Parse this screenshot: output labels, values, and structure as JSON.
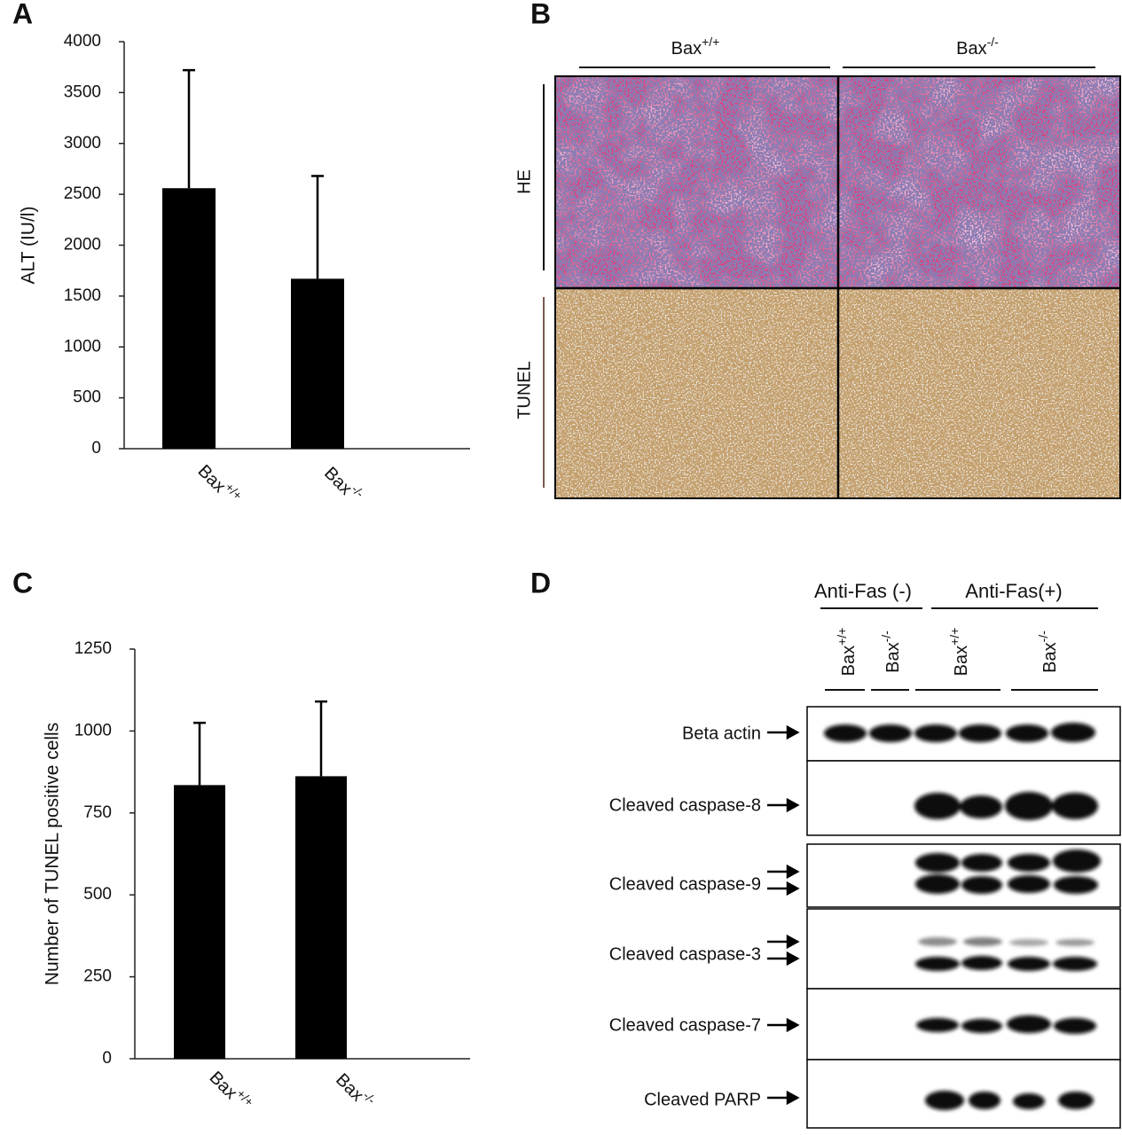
{
  "panels": {
    "a": "A",
    "b": "B",
    "c": "C",
    "d": "D"
  },
  "chart_data": [
    {
      "type": "bar",
      "y_label": "ALT (IU/l)",
      "categories": [
        "Bax+/+",
        "Bax-/-"
      ],
      "values": [
        2560,
        1670
      ],
      "errors": [
        1160,
        1010
      ],
      "color": "#000000",
      "ylim": [
        0,
        4000
      ],
      "yticks": [
        0,
        500,
        1000,
        1500,
        2000,
        2500,
        3000,
        3500,
        4000
      ]
    },
    {
      "type": "bar",
      "y_label": "Number of TUNEL positive cells",
      "categories": [
        "Bax+/+",
        "Bax-/-"
      ],
      "values": [
        835,
        862
      ],
      "errors": [
        190,
        228
      ],
      "color": "#000000",
      "ylim": [
        0,
        1250
      ],
      "yticks": [
        0,
        250,
        500,
        750,
        1000,
        1250
      ]
    }
  ],
  "histology": {
    "columns": [
      "Bax+/+",
      "Bax-/-"
    ],
    "rows": [
      "HE",
      "TUNEL"
    ]
  },
  "western_blot": {
    "treatments": [
      "Anti-Fas (-)",
      "Anti-Fas(+)"
    ],
    "lanes": [
      "Bax+/+",
      "Bax-/-",
      "Bax+/+",
      "Bax-/-"
    ],
    "proteins": [
      "Beta actin",
      "Cleaved caspase-8",
      "Cleaved caspase-9",
      "Cleaved caspase-3",
      "Cleaved caspase-7",
      "Cleaved PARP"
    ]
  }
}
